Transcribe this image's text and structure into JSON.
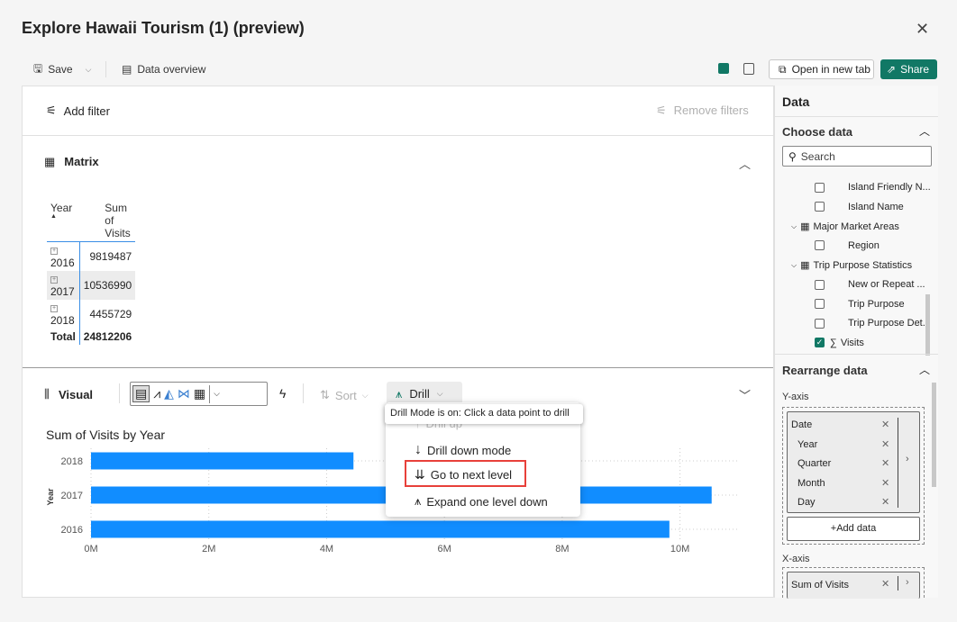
{
  "window": {
    "title": "Explore Hawaii Tourism (1) (preview)",
    "close_icon": "close-icon"
  },
  "toolbar": {
    "save": "Save",
    "data_overview": "Data overview",
    "open_new_tab": "Open in new tab",
    "share": "Share"
  },
  "filters": {
    "add": "Add filter",
    "remove": "Remove filters"
  },
  "matrix": {
    "title": "Matrix",
    "headers": [
      "Year",
      "Sum of Visits"
    ],
    "rows": [
      {
        "year": "2016",
        "value": "9819487"
      },
      {
        "year": "2017",
        "value": "10536990"
      },
      {
        "year": "2018",
        "value": "4455729"
      }
    ],
    "total_label": "Total",
    "total_value": "24812206"
  },
  "visual": {
    "title": "Visual",
    "sort": "Sort",
    "drill": "Drill",
    "tooltip": "Drill Mode is on: Click a data point to drill",
    "drill_menu": [
      "Drill up",
      "Drill down mode",
      "Go to next level",
      "Expand one level down"
    ],
    "highlighted_item": "Go to next level"
  },
  "chart_data": {
    "type": "bar",
    "orientation": "horizontal",
    "title": "Sum of Visits by Year",
    "ylabel": "Year",
    "xlabel": "",
    "categories": [
      "2018",
      "2017",
      "2016"
    ],
    "values": [
      4455729,
      10536990,
      9819487
    ],
    "xticks": [
      "0M",
      "2M",
      "4M",
      "6M",
      "8M",
      "10M"
    ],
    "xlim": [
      0,
      11000000
    ],
    "grid": true,
    "bar_color": "#118dff"
  },
  "pane": {
    "title": "Data",
    "choose": "Choose data",
    "search_placeholder": "Search",
    "fields": [
      {
        "label": "Island Friendly N...",
        "type": "field",
        "checked": false
      },
      {
        "label": "Island Name",
        "type": "field",
        "checked": false
      },
      {
        "label": "Major Market Areas",
        "type": "table"
      },
      {
        "label": "Region",
        "type": "field",
        "checked": false
      },
      {
        "label": "Trip Purpose Statistics",
        "type": "table"
      },
      {
        "label": "New or Repeat ...",
        "type": "field",
        "checked": false
      },
      {
        "label": "Trip Purpose",
        "type": "field",
        "checked": false
      },
      {
        "label": "Trip Purpose Det...",
        "type": "field",
        "checked": false
      },
      {
        "label": "Visits",
        "type": "measure",
        "checked": true
      }
    ],
    "rearrange": "Rearrange data",
    "y_axis": "Y-axis",
    "y_items": [
      "Date",
      "Year",
      "Quarter",
      "Month",
      "Day"
    ],
    "add_data": "+Add data",
    "x_axis": "X-axis",
    "x_items": [
      "Sum of Visits"
    ]
  },
  "colors": {
    "accent": "#117865",
    "bar": "#118dff",
    "highlight_box": "#e8403a"
  }
}
